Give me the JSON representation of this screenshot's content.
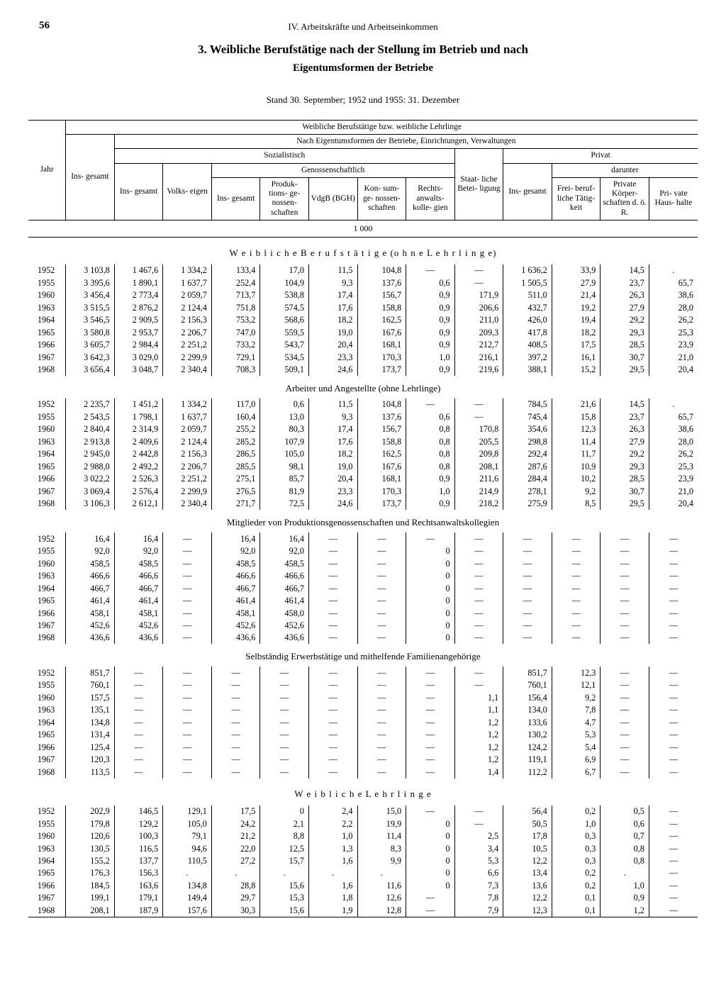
{
  "page_number": "56",
  "section_label": "IV. Arbeitskräfte und Arbeitseinkommen",
  "title_line1": "3. Weibliche Berufstätige nach der Stellung im Betrieb und nach",
  "title_line2": "Eigentumsformen der Betriebe",
  "note": "Stand 30. September; 1952 und 1955: 31. Dezember",
  "unit": "1 000",
  "headers": {
    "h1": "Weibliche Berufstätige bzw. weibliche Lehrlinge",
    "h2": "Nach Eigentumsformen der Betriebe, Einrichtungen, Verwaltungen",
    "soz": "Sozialistisch",
    "gen": "Genossenschaftlich",
    "priv": "Privat",
    "darunter": "darunter",
    "jahr": "Jahr",
    "insg": "Ins-\ngesamt",
    "volks": "Volks-\neigen",
    "prod": "Produk-\ntions-\nge-\nnossen-\nschaften",
    "vdgb": "VdgB\n(BGH)",
    "kons": "Kon-\nsum-\nge-\nnossen-\nschaften",
    "rechts": "Rechts-\nanwalts-\nkolle-\ngien",
    "staat": "Staat-\nliche\nBetei-\nligung",
    "frei": "Frei-\nberuf-\nliche\nTätig-\nkeit",
    "korper": "Private\nKörper-\nschaften\nd. ö. R.",
    "haus": "Pri-\nvate\nHaus-\nhalte"
  },
  "sections": [
    {
      "title": "W e i b l i c h e   B e r u f s t ä t i g e   (o h n e   L e h r l i n g e)",
      "spaced": true,
      "rows": [
        [
          "1952",
          "3 103,8",
          "1 467,6",
          "1 334,2",
          "133,4",
          "17,0",
          "11,5",
          "104,8",
          "—",
          "—",
          "1 636,2",
          "33,9",
          "14,5",
          "."
        ],
        [
          "1955",
          "3 395,6",
          "1 890,1",
          "1 637,7",
          "252,4",
          "104,9",
          "9,3",
          "137,6",
          "0,6",
          "—",
          "1 505,5",
          "27,9",
          "23,7",
          "65,7"
        ],
        [
          "1960",
          "3 456,4",
          "2 773,4",
          "2 059,7",
          "713,7",
          "538,8",
          "17,4",
          "156,7",
          "0,9",
          "171,9",
          "511,0",
          "21,4",
          "26,3",
          "38,6"
        ],
        [
          "1963",
          "3 515,5",
          "2 876,2",
          "2 124,4",
          "751,8",
          "574,5",
          "17,6",
          "158,8",
          "0,9",
          "206,6",
          "432,7",
          "19,2",
          "27,9",
          "28,0"
        ],
        [
          "1964",
          "3 546,5",
          "2 909,5",
          "2 156,3",
          "753,2",
          "568,6",
          "18,2",
          "162,5",
          "0,9",
          "211,0",
          "426,0",
          "19,4",
          "29,2",
          "26,2"
        ],
        [
          "1965",
          "3 580,8",
          "2 953,7",
          "2 206,7",
          "747,0",
          "559,5",
          "19,0",
          "167,6",
          "0,9",
          "209,3",
          "417,8",
          "18,2",
          "29,3",
          "25,3"
        ],
        [
          "1966",
          "3 605,7",
          "2 984,4",
          "2 251,2",
          "733,2",
          "543,7",
          "20,4",
          "168,1",
          "0,9",
          "212,7",
          "408,5",
          "17,5",
          "28,5",
          "23,9"
        ],
        [
          "1967",
          "3 642,3",
          "3 029,0",
          "2 299,9",
          "729,1",
          "534,5",
          "23,3",
          "170,3",
          "1,0",
          "216,1",
          "397,2",
          "16,1",
          "30,7",
          "21,0"
        ],
        [
          "1968",
          "3 656,4",
          "3 048,7",
          "2 340,4",
          "708,3",
          "509,1",
          "24,6",
          "173,7",
          "0,9",
          "219,6",
          "388,1",
          "15,2",
          "29,5",
          "20,4"
        ]
      ]
    },
    {
      "title": "Arbeiter und Angestellte (ohne Lehrlinge)",
      "spaced": false,
      "rows": [
        [
          "1952",
          "2 235,7",
          "1 451,2",
          "1 334,2",
          "117,0",
          "0,6",
          "11,5",
          "104,8",
          "—",
          "—",
          "784,5",
          "21,6",
          "14,5",
          "."
        ],
        [
          "1955",
          "2 543,5",
          "1 798,1",
          "1 637,7",
          "160,4",
          "13,0",
          "9,3",
          "137,6",
          "0,6",
          "—",
          "745,4",
          "15,8",
          "23,7",
          "65,7"
        ],
        [
          "1960",
          "2 840,4",
          "2 314,9",
          "2 059,7",
          "255,2",
          "80,3",
          "17,4",
          "156,7",
          "0,8",
          "170,8",
          "354,6",
          "12,3",
          "26,3",
          "38,6"
        ],
        [
          "1963",
          "2 913,8",
          "2 409,6",
          "2 124,4",
          "285,2",
          "107,9",
          "17,6",
          "158,8",
          "0,8",
          "205,5",
          "298,8",
          "11,4",
          "27,9",
          "28,0"
        ],
        [
          "1964",
          "2 945,0",
          "2 442,8",
          "2 156,3",
          "286,5",
          "105,0",
          "18,2",
          "162,5",
          "0,8",
          "209,8",
          "292,4",
          "11,7",
          "29,2",
          "26,2"
        ],
        [
          "1965",
          "2 988,0",
          "2 492,2",
          "2 206,7",
          "285,5",
          "98,1",
          "19,0",
          "167,6",
          "0,8",
          "208,1",
          "287,6",
          "10,9",
          "29,3",
          "25,3"
        ],
        [
          "1966",
          "3 022,2",
          "2 526,3",
          "2 251,2",
          "275,1",
          "85,7",
          "20,4",
          "168,1",
          "0,9",
          "211,6",
          "284,4",
          "10,2",
          "28,5",
          "23,9"
        ],
        [
          "1967",
          "3 069,4",
          "2 576,4",
          "2 299,9",
          "276,5",
          "81,9",
          "23,3",
          "170,3",
          "1,0",
          "214,9",
          "278,1",
          "9,2",
          "30,7",
          "21,0"
        ],
        [
          "1968",
          "3 106,3",
          "2 612,1",
          "2 340,4",
          "271,7",
          "72,5",
          "24,6",
          "173,7",
          "0,9",
          "218,2",
          "275,9",
          "8,5",
          "29,5",
          "20,4"
        ]
      ]
    },
    {
      "title": "Mitglieder von Produktionsgenossenschaften und Rechtsanwaltskollegien",
      "spaced": false,
      "rows": [
        [
          "1952",
          "16,4",
          "16,4",
          "—",
          "16,4",
          "16,4",
          "—",
          "—",
          "—",
          "—",
          "—",
          "—",
          "—",
          "—"
        ],
        [
          "1955",
          "92,0",
          "92,0",
          "—",
          "92,0",
          "92,0",
          "—",
          "—",
          "0",
          "—",
          "—",
          "—",
          "—",
          "—"
        ],
        [
          "1960",
          "458,5",
          "458,5",
          "—",
          "458,5",
          "458,5",
          "—",
          "—",
          "0",
          "—",
          "—",
          "—",
          "—",
          "—"
        ],
        [
          "1963",
          "466,6",
          "466,6",
          "—",
          "466,6",
          "466,6",
          "—",
          "—",
          "0",
          "—",
          "—",
          "—",
          "—",
          "—"
        ],
        [
          "1964",
          "466,7",
          "466,7",
          "—",
          "466,7",
          "466,7",
          "—",
          "—",
          "0",
          "—",
          "—",
          "—",
          "—",
          "—"
        ],
        [
          "1965",
          "461,4",
          "461,4",
          "—",
          "461,4",
          "461,4",
          "—",
          "—",
          "0",
          "—",
          "—",
          "—",
          "—",
          "—"
        ],
        [
          "1966",
          "458,1",
          "458,1",
          "—",
          "458,1",
          "458,0",
          "—",
          "—",
          "0",
          "—",
          "—",
          "—",
          "—",
          "—"
        ],
        [
          "1967",
          "452,6",
          "452,6",
          "—",
          "452,6",
          "452,6",
          "—",
          "—",
          "0",
          "—",
          "—",
          "—",
          "—",
          "—"
        ],
        [
          "1968",
          "436,6",
          "436,6",
          "—",
          "436,6",
          "436,6",
          "—",
          "—",
          "0",
          "—",
          "—",
          "—",
          "—",
          "—"
        ]
      ]
    },
    {
      "title": "Selbständig Erwerbstätige und mithelfende Familienangehörige",
      "spaced": false,
      "rows": [
        [
          "1952",
          "851,7",
          "—",
          "—",
          "—",
          "—",
          "—",
          "—",
          "—",
          "—",
          "851,7",
          "12,3",
          "—",
          "—"
        ],
        [
          "1955",
          "760,1",
          "—",
          "—",
          "—",
          "—",
          "—",
          "—",
          "—",
          "—",
          "760,1",
          "12,1",
          "—",
          "—"
        ],
        [
          "1960",
          "157,5",
          "—",
          "—",
          "—",
          "—",
          "—",
          "—",
          "—",
          "1,1",
          "156,4",
          "9,2",
          "—",
          "—"
        ],
        [
          "1963",
          "135,1",
          "—",
          "—",
          "—",
          "—",
          "—",
          "—",
          "—",
          "1,1",
          "134,0",
          "7,8",
          "—",
          "—"
        ],
        [
          "1964",
          "134,8",
          "—",
          "—",
          "—",
          "—",
          "—",
          "—",
          "—",
          "1,2",
          "133,6",
          "4,7",
          "—",
          "—"
        ],
        [
          "1965",
          "131,4",
          "—",
          "—",
          "—",
          "—",
          "—",
          "—",
          "—",
          "1,2",
          "130,2",
          "5,3",
          "—",
          "—"
        ],
        [
          "1966",
          "125,4",
          "—",
          "—",
          "—",
          "—",
          "—",
          "—",
          "—",
          "1,2",
          "124,2",
          "5,4",
          "—",
          "—"
        ],
        [
          "1967",
          "120,3",
          "—",
          "—",
          "—",
          "—",
          "—",
          "—",
          "—",
          "1,2",
          "119,1",
          "6,9",
          "—",
          "—"
        ],
        [
          "1968",
          "113,5",
          "—",
          "—",
          "—",
          "—",
          "—",
          "—",
          "—",
          "1,4",
          "112,2",
          "6,7",
          "—",
          "—"
        ]
      ]
    },
    {
      "title": "W e i b l i c h e   L e h r l i n g e",
      "spaced": true,
      "rows": [
        [
          "1952",
          "202,9",
          "146,5",
          "129,1",
          "17,5",
          "0",
          "2,4",
          "15,0",
          "—",
          "—",
          "56,4",
          "0,2",
          "0,5",
          "—"
        ],
        [
          "1955",
          "179,8",
          "129,2",
          "105,0",
          "24,2",
          "2,1",
          "2,2",
          "19,9",
          "0",
          "—",
          "50,5",
          "1,0",
          "0,6",
          "—"
        ],
        [
          "1960",
          "120,6",
          "100,3",
          "79,1",
          "21,2",
          "8,8",
          "1,0",
          "11,4",
          "0",
          "2,5",
          "17,8",
          "0,3",
          "0,7",
          "—"
        ],
        [
          "1963",
          "130,5",
          "116,5",
          "94,6",
          "22,0",
          "12,5",
          "1,3",
          "8,3",
          "0",
          "3,4",
          "10,5",
          "0,3",
          "0,8",
          "—"
        ],
        [
          "1964",
          "155,2",
          "137,7",
          "110,5",
          "27,2",
          "15,7",
          "1,6",
          "9,9",
          "0",
          "5,3",
          "12,2",
          "0,3",
          "0,8",
          "—"
        ],
        [
          "1965",
          "176,3",
          "156,3",
          ".",
          ".",
          ".",
          ".",
          ".",
          "0",
          "6,6",
          "13,4",
          "0,2",
          ".",
          "—"
        ],
        [
          "1966",
          "184,5",
          "163,6",
          "134,8",
          "28,8",
          "15,6",
          "1,6",
          "11,6",
          "0",
          "7,3",
          "13,6",
          "0,2",
          "1,0",
          "—"
        ],
        [
          "1967",
          "199,1",
          "179,1",
          "149,4",
          "29,7",
          "15,3",
          "1,8",
          "12,6",
          "—",
          "7,8",
          "12,2",
          "0,1",
          "0,9",
          "—"
        ],
        [
          "1968",
          "208,1",
          "187,9",
          "157,6",
          "30,3",
          "15,6",
          "1,9",
          "12,8",
          "—",
          "7,9",
          "12,3",
          "0,1",
          "1,2",
          "—"
        ]
      ]
    }
  ]
}
